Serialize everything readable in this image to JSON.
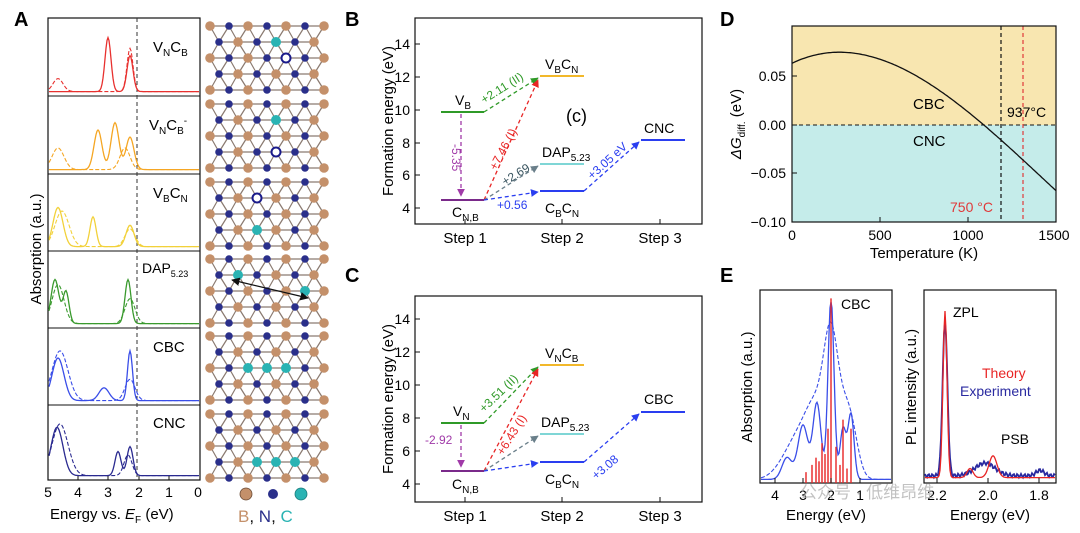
{
  "panels": {
    "A": {
      "letter": "A",
      "xlabel_main": "Energy vs. ",
      "xlabel_sub": "F",
      "xlabel_italic": "E",
      "xlabel_unit": " (eV)",
      "ylabel": "Absorption (a.u.)",
      "xticks": [
        "5",
        "4",
        "3",
        "2",
        "1",
        "0"
      ],
      "row_labels": [
        {
          "main": "V",
          "sub1": "N",
          "mid": "C",
          "sub2": "B",
          "sup": ""
        },
        {
          "main": "V",
          "sub1": "N",
          "mid": "C",
          "sub2": "B",
          "sup": "-"
        },
        {
          "main": "V",
          "sub1": "B",
          "mid": "C",
          "sub2": "N",
          "sup": ""
        },
        {
          "main": "DAP",
          "sub1": "5.23",
          "mid": "",
          "sub2": "",
          "sup": ""
        },
        {
          "main": "CBC",
          "sub1": "",
          "mid": "",
          "sub2": "",
          "sup": ""
        },
        {
          "main": "CNC",
          "sub1": "",
          "mid": "",
          "sub2": "",
          "sup": ""
        }
      ],
      "row_colors": [
        "#e8312f",
        "#f5a623",
        "#f2d13a",
        "#3a9a2e",
        "#3a4ee8",
        "#2a2a90"
      ],
      "legend_atoms": {
        "B": "B",
        "N": "N",
        "C": "C",
        "sep1": ", ",
        "sep2": ", "
      },
      "atom_colors": {
        "B": "#c4906a",
        "N": "#2a2f8a",
        "C": "#2ab3b3"
      }
    },
    "B": {
      "letter": "B",
      "ylabel": "Formation energy (eV)",
      "yticks": [
        "4",
        "6",
        "8",
        "10",
        "12",
        "14"
      ],
      "xticks": [
        "Step 1",
        "Step 2",
        "Step 3"
      ],
      "annotation": "(c)",
      "labels": {
        "vb": "V",
        "vb_sub": "B",
        "cnb": "C",
        "cnb_sub": "N,B",
        "vbcn_a": "V",
        "vbcn_b": "B",
        "vbcn_c": "C",
        "vbcn_d": "N",
        "dap": "DAP",
        "dap_sub": "5.23",
        "cbcn_a": "C",
        "cbcn_b": "B",
        "cbcn_c": "C",
        "cbcn_d": "N",
        "cnc": "CNC"
      },
      "arrows": {
        "a1": "+2.11 (II)",
        "a2": "+7.46 (I)",
        "a3": "-5.35",
        "a4": "+2.69",
        "a5": "+0.56",
        "a6": "+3.05 eV"
      }
    },
    "C": {
      "letter": "C",
      "ylabel": "Formation energy (eV)",
      "yticks": [
        "4",
        "6",
        "8",
        "10",
        "12",
        "14"
      ],
      "xticks": [
        "Step 1",
        "Step 2",
        "Step 3"
      ],
      "labels": {
        "vn": "V",
        "vn_sub": "N",
        "cnb": "C",
        "cnb_sub": "N,B",
        "vncb_a": "V",
        "vncb_b": "N",
        "vncb_c": "C",
        "vncb_d": "B",
        "dap": "DAP",
        "dap_sub": "5.23",
        "cbcn_a": "C",
        "cbcn_b": "B",
        "cbcn_c": "C",
        "cbcn_d": "N",
        "cbc": "CBC"
      },
      "arrows": {
        "a1": "+3.51 (II)",
        "a2": "+6.43 (I)",
        "a3": "-2.92",
        "a5": "+3.08"
      }
    },
    "D": {
      "letter": "D",
      "ylabel_pre": "ΔG",
      "ylabel_sub": "diff.",
      "ylabel_unit": " (eV)",
      "xlabel": "Temperature (K)",
      "yticks": [
        "0.05",
        "0.00",
        "−0.05",
        "−0.10"
      ],
      "xticks": [
        "0",
        "500",
        "1000",
        "1500"
      ],
      "region_top": "CBC",
      "region_bottom": "CNC",
      "mark1": "750 °C",
      "mark2": "937°C",
      "colors": {
        "top": "#f8e6b0",
        "bottom": "#c5ecea",
        "mark1": "#e03a3a"
      }
    },
    "E": {
      "letter": "E",
      "left": {
        "ylabel": "Absorption (a.u.)",
        "xlabel": "Energy (eV)",
        "xticks": [
          "4",
          "3",
          "2",
          "1"
        ],
        "label": "CBC"
      },
      "right": {
        "ylabel": "PL intensity (a.u.)",
        "xlabel": "Energy (eV)",
        "xticks": [
          "2.2",
          "2.0",
          "1.8"
        ],
        "zpl": "ZPL",
        "psb": "PSB",
        "legend_theory": "Theory",
        "legend_experiment": "Experiment"
      },
      "colors": {
        "theory": "#e82525",
        "experiment": "#2a2aa0"
      }
    }
  },
  "watermark": "公众号 · 低维昂维"
}
